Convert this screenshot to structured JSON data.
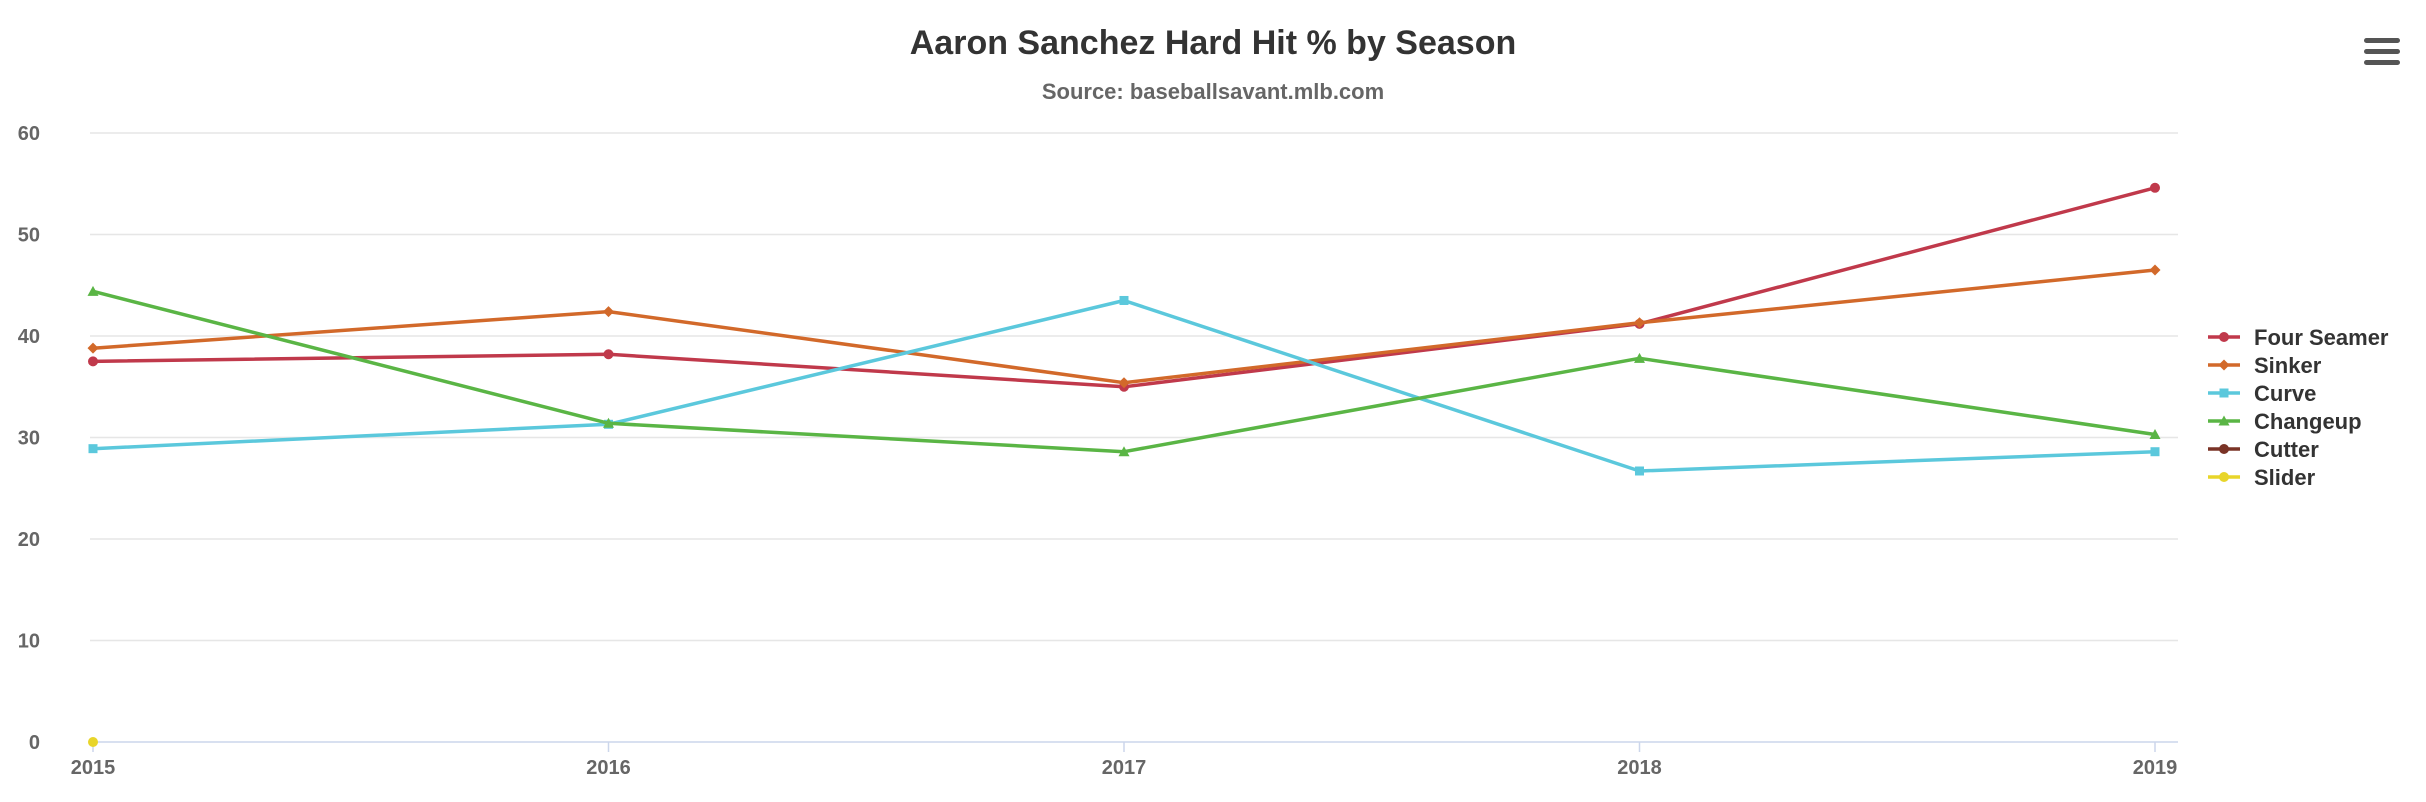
{
  "chart_data": {
    "type": "line",
    "title": "Aaron Sanchez Hard Hit % by Season",
    "subtitle": "Source: baseballsavant.mlb.com",
    "xlabel": "",
    "ylabel": "",
    "x": [
      "2015",
      "2016",
      "2017",
      "2018",
      "2019"
    ],
    "ylim": [
      0,
      60
    ],
    "yticks": [
      0,
      10,
      20,
      30,
      40,
      50,
      60
    ],
    "grid": true,
    "legend_position": "right",
    "series": [
      {
        "name": "Four Seamer",
        "color": "#c0394b",
        "marker": "circle",
        "values": [
          37.5,
          38.2,
          35.0,
          41.2,
          54.6
        ]
      },
      {
        "name": "Sinker",
        "color": "#d2692a",
        "marker": "diamond",
        "values": [
          38.8,
          42.4,
          35.4,
          41.3,
          46.5
        ]
      },
      {
        "name": "Curve",
        "color": "#5bc8dc",
        "marker": "square",
        "values": [
          28.9,
          31.3,
          43.5,
          26.7,
          28.6
        ]
      },
      {
        "name": "Changeup",
        "color": "#5ab545",
        "marker": "triangle",
        "values": [
          44.4,
          31.4,
          28.6,
          37.8,
          30.3
        ]
      },
      {
        "name": "Cutter",
        "color": "#7a3326",
        "marker": "circle",
        "values": [
          null,
          null,
          null,
          null,
          null
        ]
      },
      {
        "name": "Slider",
        "color": "#e8d52a",
        "marker": "circle",
        "values": [
          0,
          null,
          null,
          null,
          null
        ]
      }
    ]
  },
  "menu": {
    "icon": "hamburger-menu-icon"
  }
}
